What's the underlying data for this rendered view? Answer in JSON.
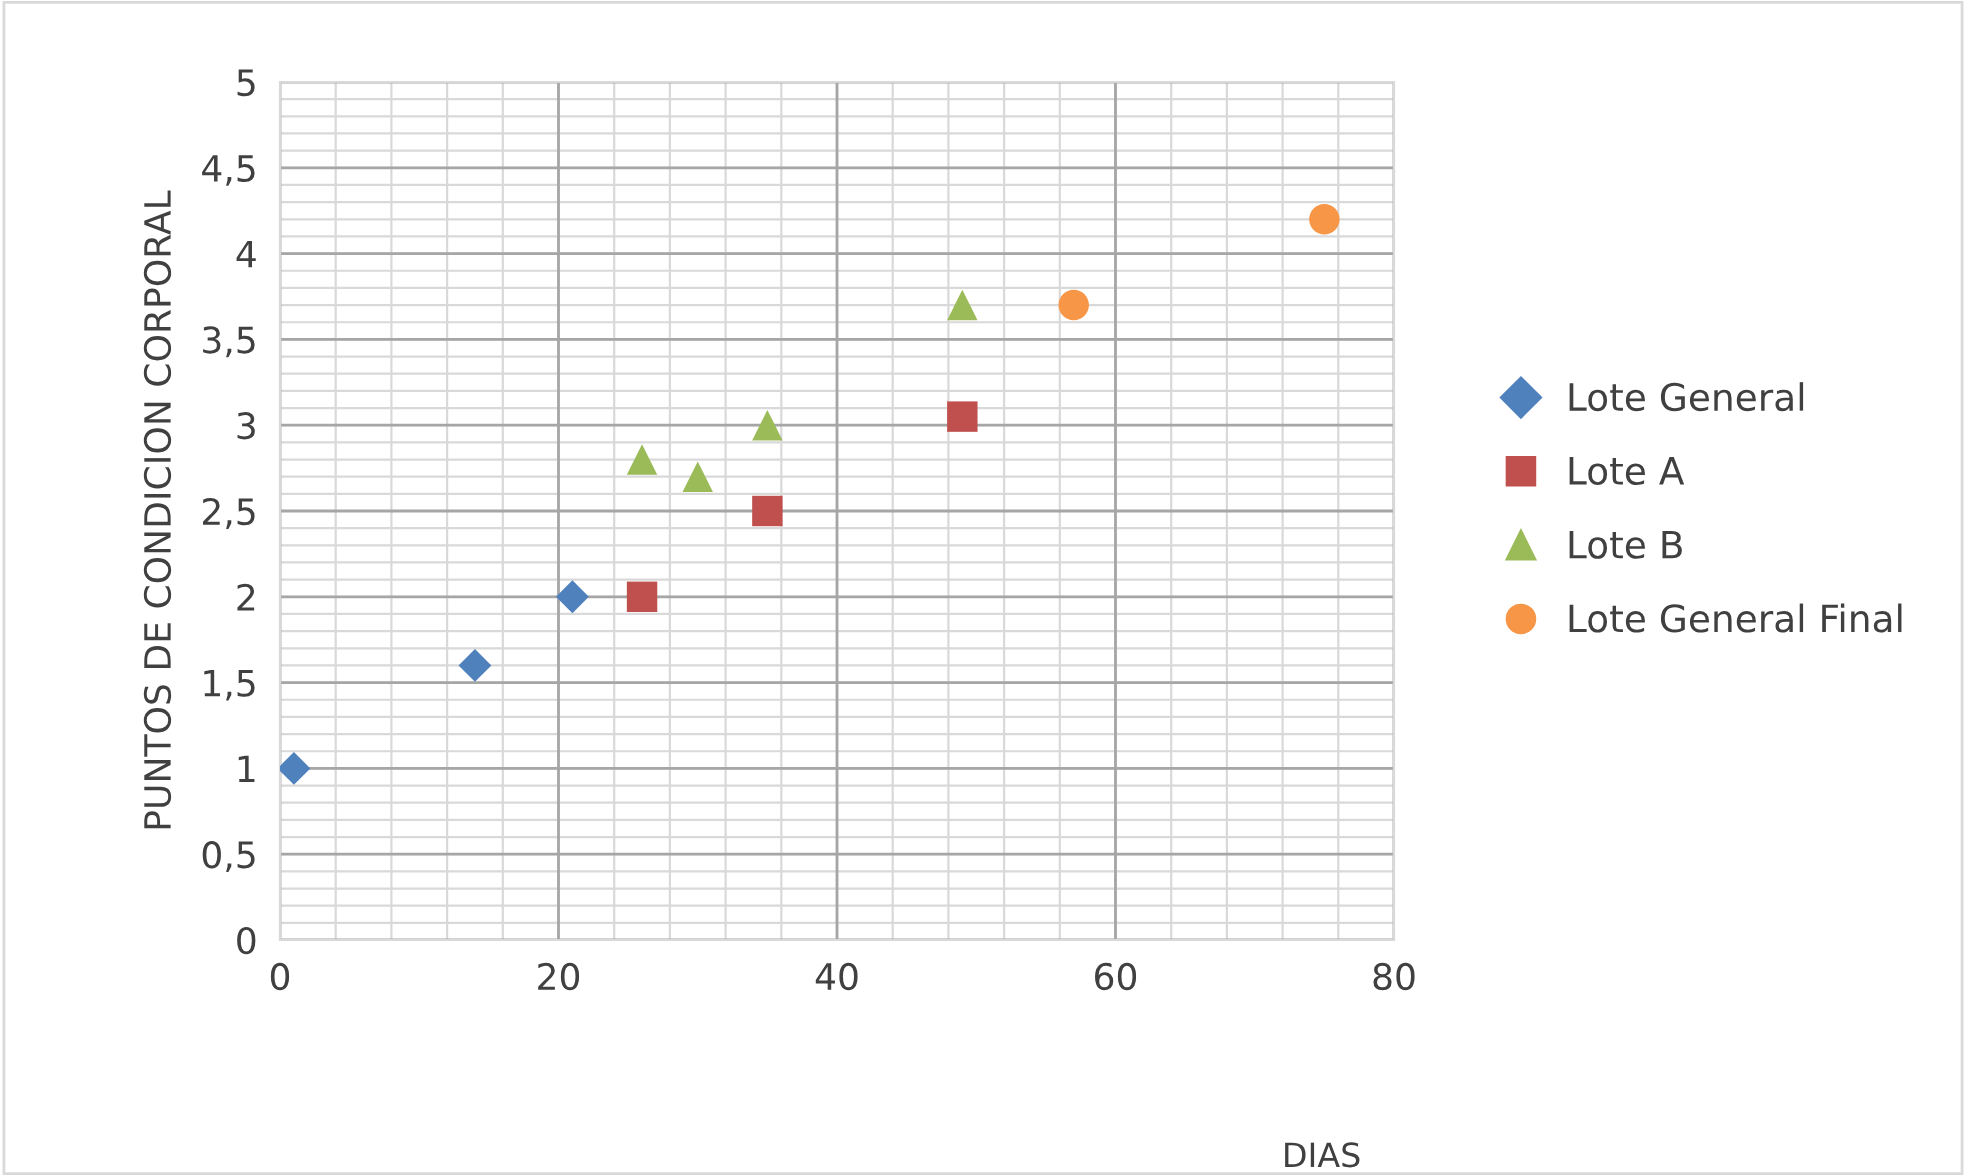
{
  "chart_data": {
    "type": "scatter",
    "xlabel": "DIAS",
    "ylabel": "PUNTOS DE CONDICION CORPORAL",
    "xlim": [
      0,
      80
    ],
    "xticks": [
      0,
      20,
      40,
      60,
      80
    ],
    "ylim": [
      0,
      5
    ],
    "yticks": [
      0,
      {
        "value": 0.5,
        "label": "0,5"
      },
      1,
      {
        "value": 1.5,
        "label": "1,5"
      },
      2,
      {
        "value": 2.5,
        "label": "2,5"
      },
      3,
      {
        "value": 3.5,
        "label": "3,5"
      },
      4,
      {
        "value": 4.5,
        "label": "4,5"
      },
      5
    ],
    "grid": true,
    "legend": "right",
    "series": [
      {
        "name": "Lote General",
        "color": "#4f81bd",
        "marker": "diamond",
        "x": [
          1,
          14,
          21
        ],
        "values": [
          1.0,
          1.6,
          2.0
        ]
      },
      {
        "name": "Lote A",
        "color": "#c0504d",
        "marker": "square",
        "x": [
          26,
          35,
          49
        ],
        "values": [
          2.0,
          2.5,
          3.05
        ]
      },
      {
        "name": "Lote B",
        "color": "#9bbb59",
        "marker": "triangle",
        "x": [
          26,
          30,
          35,
          49
        ],
        "values": [
          2.8,
          2.7,
          3.0,
          3.7
        ]
      },
      {
        "name": "Lote General Final",
        "color": "#f79646",
        "marker": "circle",
        "x": [
          57,
          75
        ],
        "values": [
          3.7,
          4.2
        ]
      }
    ]
  }
}
